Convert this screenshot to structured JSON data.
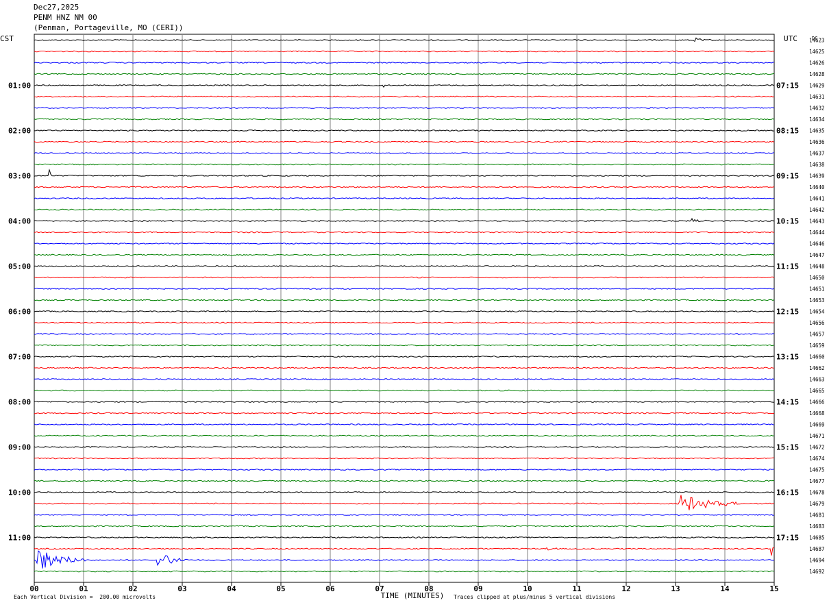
{
  "header": {
    "date": "Dec27,2025",
    "station": "PENM HNZ NM 00",
    "location": "(Penman, Portageville, MO (CERI))"
  },
  "labels": {
    "left_zone": "CST",
    "right_zone": "UTC",
    "dc": "DC",
    "x_axis_title": "TIME (MINUTES)",
    "footer_left": "Each Vertical Division =  200.00 microvolts",
    "footer_right": "Traces clipped at plus/minus 5 vertical divisions"
  },
  "colors": {
    "trace_cycle": [
      "#000000",
      "#ff0000",
      "#0000ff",
      "#008000"
    ],
    "grid": "#808080"
  },
  "chart_data": {
    "type": "line",
    "xlim": [
      0,
      15
    ],
    "x_ticks": [
      "00",
      "01",
      "02",
      "03",
      "04",
      "05",
      "06",
      "07",
      "08",
      "09",
      "10",
      "11",
      "12",
      "13",
      "14",
      "15"
    ],
    "traces_per_hour": 4,
    "left_hour_labels": [
      "01:00",
      "02:00",
      "03:00",
      "04:00",
      "05:00",
      "06:00",
      "07:00",
      "08:00",
      "09:00",
      "10:00",
      "11:00"
    ],
    "right_hour_labels": [
      "07:15",
      "08:15",
      "09:15",
      "10:15",
      "11:15",
      "12:15",
      "13:15",
      "14:15",
      "15:15",
      "16:15",
      "17:15"
    ],
    "dc_values": [
      "14623",
      "14625",
      "14626",
      "14628",
      "14629",
      "14631",
      "14632",
      "14634",
      "14635",
      "14636",
      "14637",
      "14638",
      "14639",
      "14640",
      "14641",
      "14642",
      "14643",
      "14644",
      "14646",
      "14647",
      "14648",
      "14650",
      "14651",
      "14653",
      "14654",
      "14656",
      "14657",
      "14659",
      "14660",
      "14662",
      "14663",
      "14665",
      "14666",
      "14668",
      "14669",
      "14671",
      "14672",
      "14674",
      "14675",
      "14677",
      "14678",
      "14679",
      "14681",
      "14683",
      "14685",
      "14687",
      "14694",
      "14692"
    ],
    "events": [
      {
        "trace": 0,
        "minute": 13.4,
        "amplitude": 4,
        "duration": 0.3
      },
      {
        "trace": 2,
        "minute": 10.6,
        "amplitude": 1.5,
        "duration": 0.5
      },
      {
        "trace": 4,
        "minute": 7.05,
        "amplitude": 8,
        "duration": 0.05
      },
      {
        "trace": 12,
        "minute": 0.3,
        "amplitude": 10,
        "duration": 0.08
      },
      {
        "trace": 16,
        "minute": 13.35,
        "amplitude": 4,
        "duration": 0.3
      },
      {
        "trace": 24,
        "minute": 1.95,
        "amplitude": 3,
        "duration": 0.05
      },
      {
        "trace": 41,
        "minute": 13.1,
        "amplitude": 14,
        "duration": 1.2
      },
      {
        "trace": 45,
        "minute": 10.4,
        "amplitude": 3,
        "duration": 0.2
      },
      {
        "trace": 45,
        "minute": 14.95,
        "amplitude": 12,
        "duration": 0.2
      },
      {
        "trace": 46,
        "minute": 0.05,
        "amplitude": 18,
        "duration": 1.0
      },
      {
        "trace": 46,
        "minute": 2.5,
        "amplitude": 14,
        "duration": 0.6
      }
    ]
  }
}
